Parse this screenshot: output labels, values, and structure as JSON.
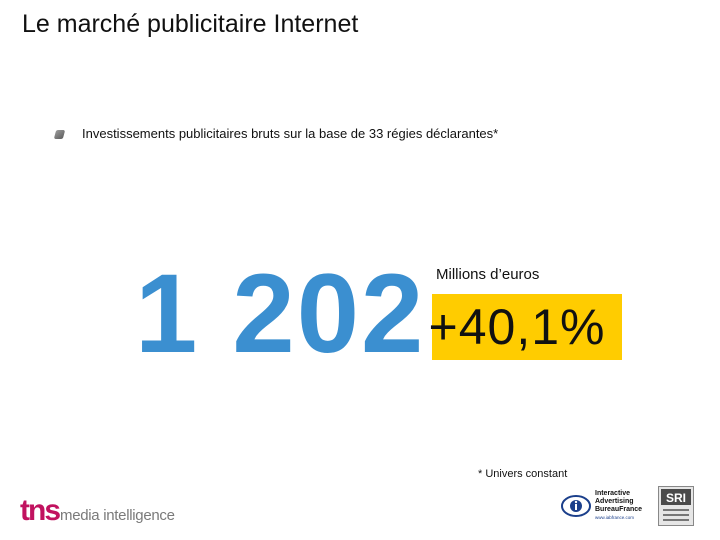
{
  "title": "Le marché publicitaire Internet",
  "subtitle": "Investissements publicitaires bruts sur la base de 33 régies déclarantes*",
  "main_figure": {
    "value": "1 202",
    "unit": "Millions d’euros",
    "growth": "+40,1%"
  },
  "footnote": "* Univers constant",
  "logos": {
    "tns": {
      "word": "tns",
      "tagline": "media intelligence"
    },
    "iab": {
      "line1": "Interactive",
      "line2": "Advertising",
      "line3": "BureauFrance",
      "url": "www.iabfrance.com"
    },
    "sri": {
      "word": "SRI"
    }
  },
  "colors": {
    "figure_blue": "#3b8fd0",
    "highlight_yellow": "#ffcc00",
    "tns_magenta": "#c1125f"
  }
}
